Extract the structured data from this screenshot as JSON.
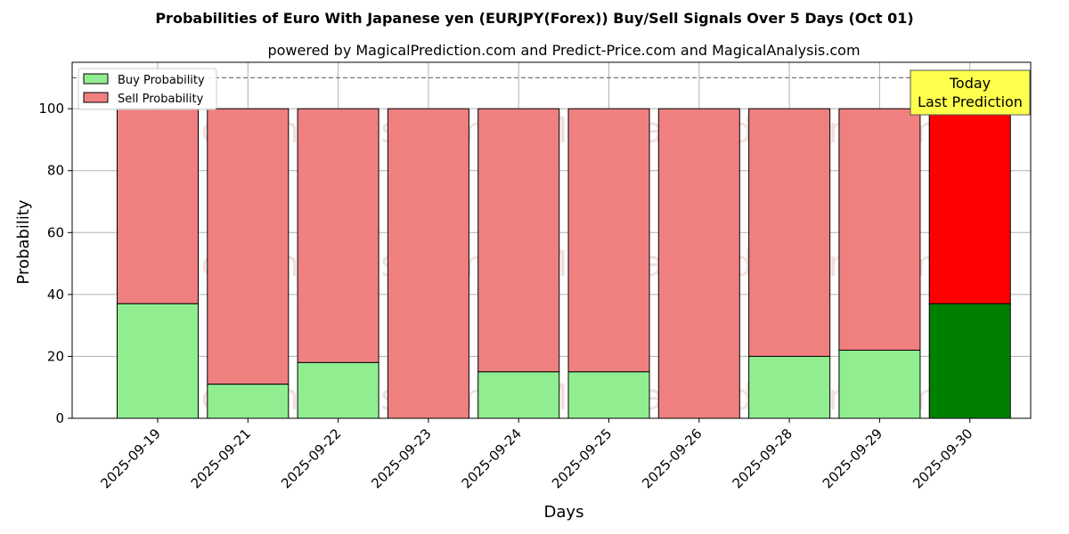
{
  "chart_data": {
    "type": "bar",
    "stacked": true,
    "title": "Probabilities of Euro With Japanese yen (EURJPY(Forex)) Buy/Sell Signals Over 5 Days (Oct 01)",
    "subtitle": "powered by MagicalPrediction.com and Predict-Price.com and MagicalAnalysis.com",
    "xlabel": "Days",
    "ylabel": "Probability",
    "ylim": [
      0,
      115
    ],
    "yticks": [
      0,
      20,
      40,
      60,
      80,
      100
    ],
    "grid": true,
    "legend_position": "top-left",
    "reference_line": 110,
    "categories": [
      "2025-09-19",
      "2025-09-21",
      "2025-09-22",
      "2025-09-23",
      "2025-09-24",
      "2025-09-25",
      "2025-09-26",
      "2025-09-28",
      "2025-09-29",
      "2025-09-30"
    ],
    "series": [
      {
        "name": "Buy Probability",
        "color": "#90ee90",
        "highlight_color": "#008000",
        "values": [
          37,
          11,
          18,
          0,
          15,
          15,
          0,
          20,
          22,
          37
        ]
      },
      {
        "name": "Sell Probability",
        "color": "#f08080",
        "highlight_color": "#ff0000",
        "values": [
          63,
          89,
          82,
          100,
          85,
          85,
          100,
          80,
          78,
          63
        ]
      }
    ],
    "highlight_index": 9,
    "annotation": {
      "line1": "Today",
      "line2": "Last Prediction",
      "color": "#ffff4d"
    },
    "watermarks": [
      "MagicalAnalysis.com",
      "MagicalPrediction.com"
    ]
  }
}
